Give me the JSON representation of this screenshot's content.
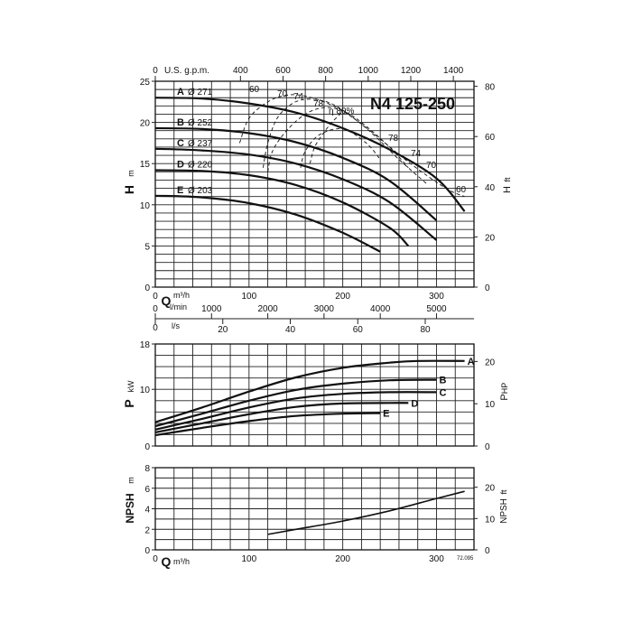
{
  "chart_data": [
    {
      "type": "line",
      "title": "N4 125-250",
      "ylabel": "H",
      "ylabel_unit": "m",
      "y2label": "H",
      "y2label_unit": "ft",
      "xlim": [
        0,
        340
      ],
      "ylim": [
        0,
        25
      ],
      "y_ticks": [
        0,
        5,
        10,
        15,
        20,
        25
      ],
      "y2_ticks": [
        0,
        20,
        40,
        60,
        80
      ],
      "top_axis": {
        "label": "U.S. g.p.m.",
        "zero": "0",
        "ticks": [
          400,
          600,
          800,
          1000,
          1200,
          1400
        ]
      },
      "series": [
        {
          "name": "A",
          "diameter": "Ø 271",
          "x": [
            0,
            50,
            100,
            150,
            200,
            250,
            300,
            330
          ],
          "y": [
            23,
            22.9,
            22.3,
            21.2,
            19.3,
            16.7,
            13.2,
            9.2
          ]
        },
        {
          "name": "B",
          "diameter": "Ø 252",
          "x": [
            0,
            50,
            100,
            150,
            200,
            250,
            300
          ],
          "y": [
            19.3,
            19.2,
            18.7,
            17.6,
            15.7,
            12.9,
            8.1
          ]
        },
        {
          "name": "C",
          "diameter": "Ø 237",
          "x": [
            0,
            50,
            100,
            150,
            200,
            250,
            300
          ],
          "y": [
            16.8,
            16.6,
            16.1,
            15,
            13.1,
            10.3,
            5.7
          ]
        },
        {
          "name": "D",
          "diameter": "Ø 220",
          "x": [
            0,
            50,
            100,
            150,
            200,
            250,
            270
          ],
          "y": [
            14.2,
            14.1,
            13.6,
            12.4,
            10.3,
            7.2,
            5
          ]
        },
        {
          "name": "E",
          "diameter": "Ø 203",
          "x": [
            0,
            50,
            100,
            150,
            200,
            240
          ],
          "y": [
            11.1,
            10.9,
            10.2,
            8.8,
            6.6,
            4.3
          ]
        }
      ],
      "efficiency_label": "η 80%",
      "efficiency_curves": [
        {
          "label": "60",
          "x": [
            90,
            100,
            120,
            140,
            160,
            190,
            220,
            270,
            310,
            330
          ],
          "y": [
            17.5,
            20.5,
            22.5,
            23.3,
            23.2,
            22,
            19.8,
            15.2,
            12,
            11
          ]
        },
        {
          "label": "70",
          "x": [
            115,
            120,
            130,
            145,
            160,
            180,
            200,
            230,
            260,
            290
          ],
          "y": [
            14.5,
            17.5,
            20.5,
            22.2,
            22.8,
            22.6,
            21.5,
            18.8,
            15.5,
            12.5
          ]
        },
        {
          "label": "74",
          "x": [
            120,
            125,
            140,
            160,
            180,
            200,
            220,
            250,
            270
          ],
          "y": [
            14,
            16.5,
            19,
            21,
            21.8,
            21.4,
            20,
            17,
            14.5
          ]
        },
        {
          "label": "78",
          "x": [
            155,
            160,
            175,
            200,
            225,
            240
          ],
          "y": [
            14.5,
            16.5,
            18.5,
            19.2,
            17.5,
            15.5
          ]
        },
        {
          "label": "80%",
          "x": [
            165,
            170,
            180,
            190,
            200
          ],
          "y": [
            15,
            17,
            18.8,
            20.2,
            21.3
          ]
        }
      ]
    },
    {
      "type": "line",
      "xlabel": "Q",
      "xlabel_unit": "m³/h",
      "x_ticks": [
        0,
        100,
        200,
        300
      ],
      "scales": [
        {
          "label": "l/min",
          "zero": "0",
          "ticks": [
            1000,
            2000,
            3000,
            4000,
            5000
          ]
        },
        {
          "label": "l/s",
          "zero": "0",
          "ticks": [
            20,
            40,
            60,
            80
          ]
        }
      ],
      "ylabel": "P",
      "ylabel_unit": "kW",
      "y2label": "P",
      "y2label_unit": "HP",
      "xlim": [
        0,
        340
      ],
      "ylim": [
        0,
        18
      ],
      "y_ticks": [
        0,
        10,
        18
      ],
      "y2_ticks": [
        0,
        10,
        20
      ],
      "series": [
        {
          "name": "A",
          "x": [
            0,
            50,
            100,
            150,
            200,
            250,
            280,
            330
          ],
          "y": [
            4.2,
            6.8,
            9.6,
            12.1,
            13.8,
            14.7,
            15,
            15
          ]
        },
        {
          "name": "B",
          "x": [
            0,
            50,
            100,
            150,
            200,
            250,
            300
          ],
          "y": [
            3.5,
            5.7,
            8,
            9.9,
            11,
            11.6,
            11.7
          ]
        },
        {
          "name": "C",
          "x": [
            0,
            50,
            100,
            150,
            200,
            250,
            300
          ],
          "y": [
            2.9,
            4.8,
            6.8,
            8.4,
            9.2,
            9.5,
            9.5
          ]
        },
        {
          "name": "D",
          "x": [
            0,
            50,
            100,
            150,
            200,
            250,
            270
          ],
          "y": [
            2.4,
            4,
            5.6,
            6.9,
            7.5,
            7.6,
            7.6
          ]
        },
        {
          "name": "E",
          "x": [
            0,
            50,
            100,
            150,
            200,
            240
          ],
          "y": [
            1.9,
            3.2,
            4.4,
            5.3,
            5.7,
            5.8
          ]
        }
      ]
    },
    {
      "type": "line",
      "xlabel": "Q",
      "xlabel_unit": "m³/h",
      "ylabel": "NPSH",
      "ylabel_unit": "m",
      "y2label": "NPSH",
      "y2label_unit": "ft",
      "xlim": [
        0,
        340
      ],
      "ylim": [
        0,
        8
      ],
      "x_ticks": [
        0,
        100,
        200,
        300
      ],
      "y_ticks": [
        0,
        2,
        4,
        6,
        8
      ],
      "y2_ticks": [
        0,
        10,
        20
      ],
      "series": [
        {
          "x": [
            120,
            150,
            200,
            250,
            300,
            330
          ],
          "y": [
            1.5,
            2,
            2.8,
            3.8,
            5,
            5.7
          ]
        }
      ]
    }
  ],
  "code": "72.095"
}
